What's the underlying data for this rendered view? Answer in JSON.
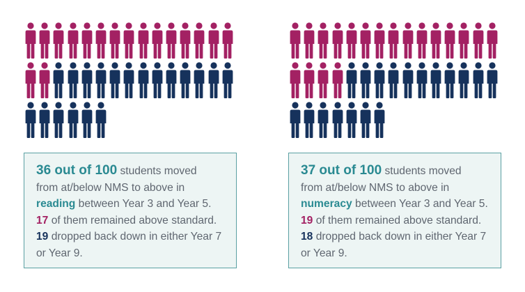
{
  "colors": {
    "moved_up_remained": "#a32163",
    "moved_up_dropped": "#16325c",
    "accent": "#2a8a92",
    "box_border": "#5aa0a2",
    "box_bg": "#edf5f4",
    "body_text": "#5f6670"
  },
  "icons": {
    "person": "person-icon"
  },
  "panels": [
    {
      "subject": "reading",
      "remained_above": 17,
      "dropped_back": 19,
      "lines": {
        "l1_strong": "36 out of 100",
        "l1_rest": " students moved",
        "l2": "from at/below NMS to above in",
        "l3_strong": "reading",
        "l3_rest": " between Year 3 and Year 5.",
        "l4_num": "17",
        "l4_rest": " of them remained above standard.",
        "l5_num": "19",
        "l5_rest": " dropped back down in either Year 7",
        "l6": "or Year 9."
      }
    },
    {
      "subject": "numeracy",
      "remained_above": 19,
      "dropped_back": 18,
      "lines": {
        "l1_strong": "37 out of 100",
        "l1_rest": " students moved",
        "l2": "from at/below NMS to above in",
        "l3_strong": "numeracy",
        "l3_rest": " between Year 3 and Year 5.",
        "l4_num": "19",
        "l4_rest": " of them remained above standard.",
        "l5_num": "18",
        "l5_rest": " dropped back down in either Year 7",
        "l6": "or Year 9."
      }
    }
  ]
}
